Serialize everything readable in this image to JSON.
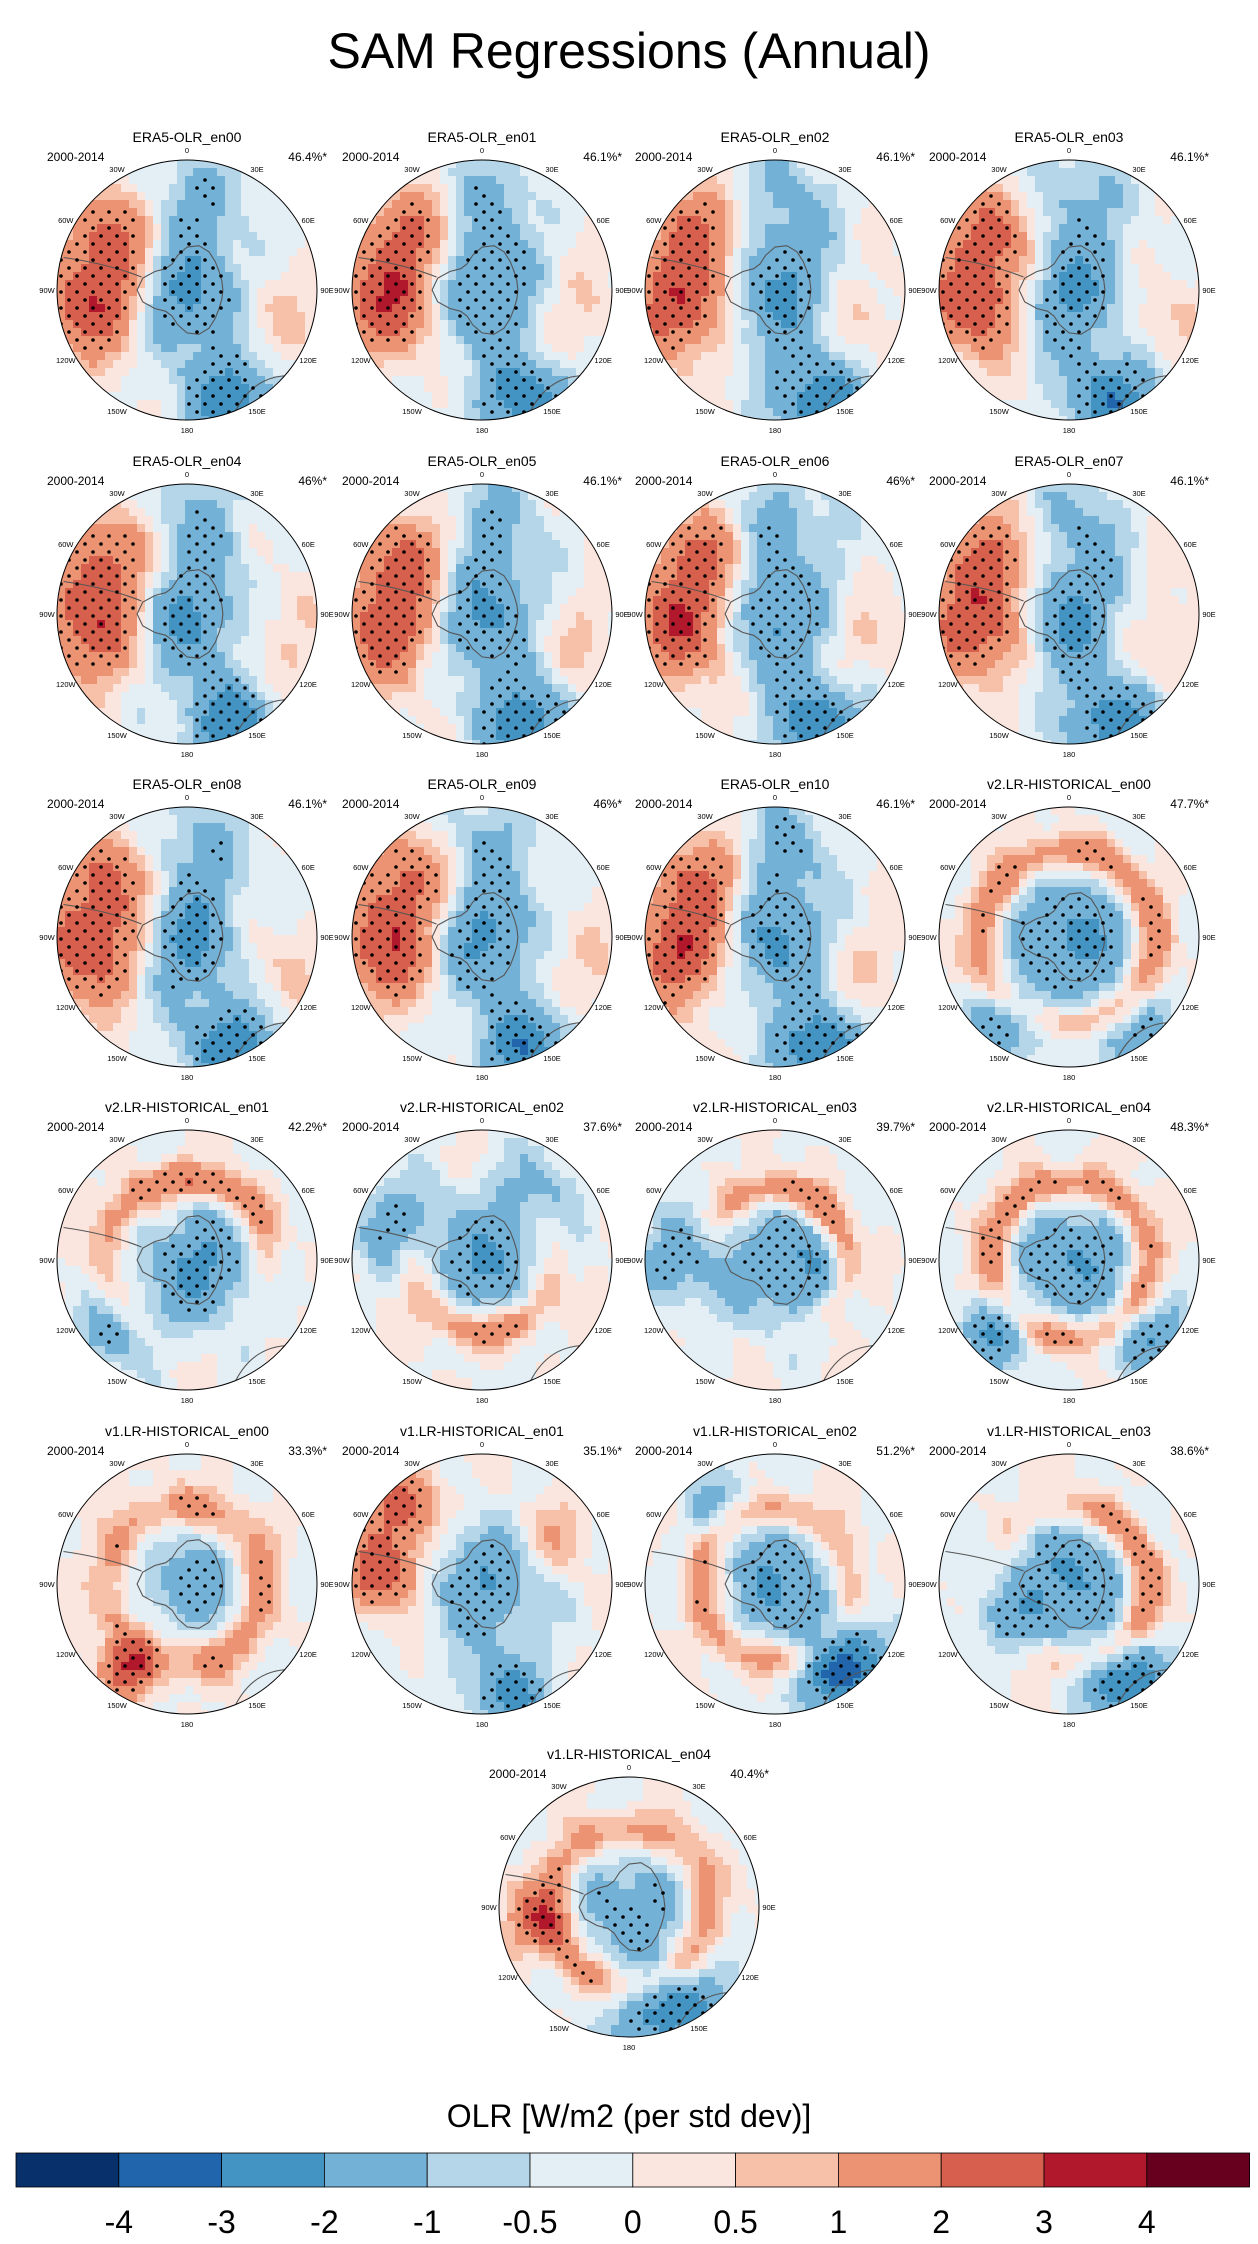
{
  "figure": {
    "title": "SAM Regressions (Annual)",
    "period": "2000-2014",
    "lon_labels": [
      "0",
      "30E",
      "60E",
      "90E",
      "120E",
      "150E",
      "180",
      "150W",
      "120W",
      "90W",
      "60W",
      "30W"
    ]
  },
  "chart_data": [
    {
      "type": "heatmap",
      "title": "ERA5-OLR_en00",
      "subtitle_left": "2000-2014",
      "variance": "46.4%*",
      "variance_pct": 46.4,
      "pattern": "era5"
    },
    {
      "type": "heatmap",
      "title": "ERA5-OLR_en01",
      "subtitle_left": "2000-2014",
      "variance": "46.1%*",
      "variance_pct": 46.1,
      "pattern": "era5"
    },
    {
      "type": "heatmap",
      "title": "ERA5-OLR_en02",
      "subtitle_left": "2000-2014",
      "variance": "46.1%*",
      "variance_pct": 46.1,
      "pattern": "era5"
    },
    {
      "type": "heatmap",
      "title": "ERA5-OLR_en03",
      "subtitle_left": "2000-2014",
      "variance": "46.1%*",
      "variance_pct": 46.1,
      "pattern": "era5"
    },
    {
      "type": "heatmap",
      "title": "ERA5-OLR_en04",
      "subtitle_left": "2000-2014",
      "variance": "46%*",
      "variance_pct": 46.0,
      "pattern": "era5"
    },
    {
      "type": "heatmap",
      "title": "ERA5-OLR_en05",
      "subtitle_left": "2000-2014",
      "variance": "46.1%*",
      "variance_pct": 46.1,
      "pattern": "era5"
    },
    {
      "type": "heatmap",
      "title": "ERA5-OLR_en06",
      "subtitle_left": "2000-2014",
      "variance": "46%*",
      "variance_pct": 46.0,
      "pattern": "era5"
    },
    {
      "type": "heatmap",
      "title": "ERA5-OLR_en07",
      "subtitle_left": "2000-2014",
      "variance": "46.1%*",
      "variance_pct": 46.1,
      "pattern": "era5"
    },
    {
      "type": "heatmap",
      "title": "ERA5-OLR_en08",
      "subtitle_left": "2000-2014",
      "variance": "46.1%*",
      "variance_pct": 46.1,
      "pattern": "era5"
    },
    {
      "type": "heatmap",
      "title": "ERA5-OLR_en09",
      "subtitle_left": "2000-2014",
      "variance": "46%*",
      "variance_pct": 46.0,
      "pattern": "era5"
    },
    {
      "type": "heatmap",
      "title": "ERA5-OLR_en10",
      "subtitle_left": "2000-2014",
      "variance": "46.1%*",
      "variance_pct": 46.1,
      "pattern": "era5"
    },
    {
      "type": "heatmap",
      "title": "v2.LR-HISTORICAL_en00",
      "subtitle_left": "2000-2014",
      "variance": "47.7%*",
      "variance_pct": 47.7,
      "pattern": "v2a"
    },
    {
      "type": "heatmap",
      "title": "v2.LR-HISTORICAL_en01",
      "subtitle_left": "2000-2014",
      "variance": "42.2%*",
      "variance_pct": 42.2,
      "pattern": "v2b"
    },
    {
      "type": "heatmap",
      "title": "v2.LR-HISTORICAL_en02",
      "subtitle_left": "2000-2014",
      "variance": "37.6%*",
      "variance_pct": 37.6,
      "pattern": "v2c"
    },
    {
      "type": "heatmap",
      "title": "v2.LR-HISTORICAL_en03",
      "subtitle_left": "2000-2014",
      "variance": "39.7%*",
      "variance_pct": 39.7,
      "pattern": "v2d"
    },
    {
      "type": "heatmap",
      "title": "v2.LR-HISTORICAL_en04",
      "subtitle_left": "2000-2014",
      "variance": "48.3%*",
      "variance_pct": 48.3,
      "pattern": "v2e"
    },
    {
      "type": "heatmap",
      "title": "v1.LR-HISTORICAL_en00",
      "subtitle_left": "2000-2014",
      "variance": "33.3%*",
      "variance_pct": 33.3,
      "pattern": "v1a"
    },
    {
      "type": "heatmap",
      "title": "v1.LR-HISTORICAL_en01",
      "subtitle_left": "2000-2014",
      "variance": "35.1%*",
      "variance_pct": 35.1,
      "pattern": "v1b"
    },
    {
      "type": "heatmap",
      "title": "v1.LR-HISTORICAL_en02",
      "subtitle_left": "2000-2014",
      "variance": "51.2%*",
      "variance_pct": 51.2,
      "pattern": "v1c"
    },
    {
      "type": "heatmap",
      "title": "v1.LR-HISTORICAL_en03",
      "subtitle_left": "2000-2014",
      "variance": "38.6%*",
      "variance_pct": 38.6,
      "pattern": "v1d"
    },
    {
      "type": "heatmap",
      "title": "v1.LR-HISTORICAL_en04",
      "subtitle_left": "2000-2014",
      "variance": "40.4%*",
      "variance_pct": 40.4,
      "pattern": "v1e"
    }
  ],
  "colorbar": {
    "title": "OLR [W/m2 (per std dev)]",
    "tick_labels": [
      "-4",
      "-3",
      "-2",
      "-1",
      "-0.5",
      "0",
      "0.5",
      "1",
      "2",
      "3",
      "4"
    ],
    "colors": [
      "#08306b",
      "#2166ac",
      "#4393c3",
      "#74b1d6",
      "#b5d5e8",
      "#e4eef5",
      "#fbe6df",
      "#f7c0a8",
      "#ec9373",
      "#d6604d",
      "#b2182b",
      "#67001f"
    ]
  }
}
